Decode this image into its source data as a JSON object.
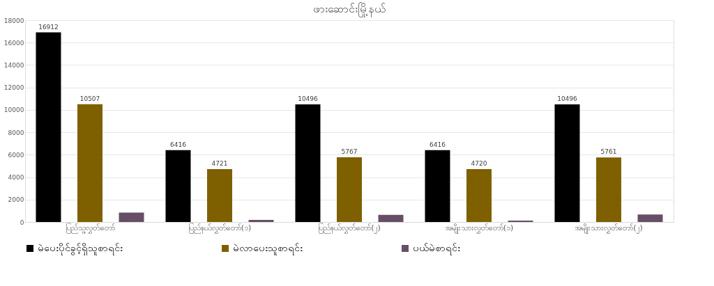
{
  "chart_data": {
    "type": "bar",
    "title": "ဖားဆောင်းမြို့နယ်",
    "categories": [
      "ပြည်သူ့လွှတ်တော်",
      "ပြည်နယ်လွှတ်တော်(၁)",
      "ပြည်နယ်လွှတ်တော်(၂)",
      "အမျိုးသားလွှတ်တော်(၁)",
      "အမျိုးသားလွှတ်တော်(၂)"
    ],
    "series": [
      {
        "name": "မဲပေးပိုင်ခွင့်ရှိသူစာရင်း",
        "color": "#000000",
        "values": [
          16912,
          6416,
          10496,
          6416,
          10496
        ],
        "value_labels": [
          "16912",
          "6416",
          "10496",
          "6416",
          "10496"
        ]
      },
      {
        "name": "မဲလာပေးသူစာရင်း",
        "color": "#7f6000",
        "values": [
          10507,
          4721,
          5767,
          4720,
          5761
        ],
        "value_labels": [
          "10507",
          "4721",
          "5767",
          "4720",
          "5761"
        ]
      },
      {
        "name": "ပယ်မဲစာရင်း",
        "color": "#674e67",
        "values": [
          840,
          190,
          640,
          130,
          660
        ]
      }
    ],
    "ylim": [
      0,
      18000
    ],
    "yticks": [
      0,
      2000,
      4000,
      6000,
      8000,
      10000,
      12000,
      14000,
      16000,
      18000
    ],
    "grid": "y",
    "legend": "bottom"
  }
}
